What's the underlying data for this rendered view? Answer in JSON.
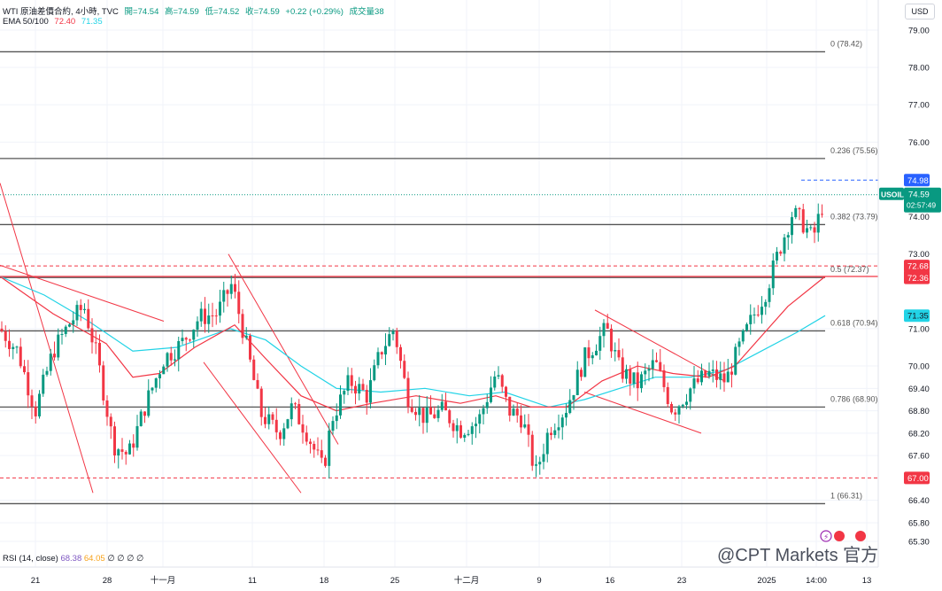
{
  "header": {
    "symbol": "WTI 原油差價合約, 4小時, TVC",
    "open": "開=74.54",
    "high": "高=74.59",
    "low": "低=74.52",
    "close": "收=74.59",
    "change": "+0.22 (+0.29%)",
    "volume": "成交量38"
  },
  "ema": {
    "label": "EMA 50/100",
    "v50": "72.40",
    "v100": "71.35"
  },
  "rsi": {
    "label": "RSI (14, close)",
    "v1": "68.38",
    "v2": "64.05",
    "rest": "∅ ∅ ∅ ∅"
  },
  "currency_button": "USD",
  "watermark": "@CPT Markets 官方",
  "colors": {
    "up": "#089981",
    "down": "#f23645",
    "ema50": "#f23645",
    "ema100": "#22d3e6",
    "fib_line": "#555555",
    "grid": "#f0f3fa",
    "accent_blue": "#2962ff"
  },
  "chart_data": {
    "type": "candlestick",
    "symbol": "USOIL",
    "timeframe": "4小時",
    "ylim": [
      65.3,
      79.0
    ],
    "y_ticks": [
      79.0,
      78.0,
      77.0,
      76.0,
      74.0,
      73.0,
      71.0,
      70.0,
      69.4,
      68.8,
      68.2,
      67.6,
      66.4,
      65.8,
      65.3
    ],
    "x_ticks": [
      "21",
      "28",
      "十一月",
      "11",
      "18",
      "25",
      "十二月",
      "9",
      "16",
      "23",
      "2025",
      "14:00",
      "13"
    ],
    "fib_levels": [
      {
        "ratio": "0",
        "value": 78.42
      },
      {
        "ratio": "0.236",
        "value": 75.56
      },
      {
        "ratio": "0.382",
        "value": 73.79
      },
      {
        "ratio": "0.5",
        "value": 72.37
      },
      {
        "ratio": "0.618",
        "value": 70.94
      },
      {
        "ratio": "0.786",
        "value": 68.9
      },
      {
        "ratio": "1",
        "value": 66.31
      }
    ],
    "price_labels": [
      {
        "text": "74.98",
        "value": 74.98,
        "color": "#2962ff"
      },
      {
        "text": "USOIL",
        "sub": "74.59",
        "time": "02:57:49",
        "value": 74.59,
        "color": "#089981"
      },
      {
        "text": "72.68",
        "value": 72.68,
        "color": "#f23645"
      },
      {
        "text": "72.40",
        "value": 72.4,
        "color": "#f23645"
      },
      {
        "text": "72.36",
        "value": 72.36,
        "color": "#f23645"
      },
      {
        "text": "71.35",
        "value": 71.35,
        "color": "#22d3e6"
      },
      {
        "text": "67.00",
        "value": 67.0,
        "color": "#f23645"
      }
    ],
    "horizontal_lines": [
      {
        "value": 72.4,
        "style": "solid",
        "color": "#f23645"
      },
      {
        "value": 72.68,
        "style": "dashed",
        "color": "#f23645"
      },
      {
        "value": 67.0,
        "style": "dashed",
        "color": "#f23645"
      },
      {
        "value": 74.98,
        "style": "dashed",
        "color": "#2962ff"
      },
      {
        "value": 74.59,
        "style": "dotted",
        "color": "#089981"
      }
    ],
    "keypoints": [
      [
        0,
        71.0
      ],
      [
        20,
        70.4
      ],
      [
        40,
        68.8
      ],
      [
        60,
        70.4
      ],
      [
        80,
        71.2
      ],
      [
        95,
        71.6
      ],
      [
        110,
        70.2
      ],
      [
        128,
        67.9
      ],
      [
        145,
        67.6
      ],
      [
        165,
        69.0
      ],
      [
        185,
        70.2
      ],
      [
        205,
        70.6
      ],
      [
        225,
        71.3
      ],
      [
        245,
        71.4
      ],
      [
        262,
        72.2
      ],
      [
        275,
        70.9
      ],
      [
        295,
        68.7
      ],
      [
        315,
        68.2
      ],
      [
        330,
        68.9
      ],
      [
        345,
        68.3
      ],
      [
        365,
        67.2
      ],
      [
        375,
        68.6
      ],
      [
        395,
        69.6
      ],
      [
        415,
        69.2
      ],
      [
        430,
        70.4
      ],
      [
        445,
        71.0
      ],
      [
        460,
        69.2
      ],
      [
        480,
        68.6
      ],
      [
        500,
        68.8
      ],
      [
        520,
        68.3
      ],
      [
        540,
        68.5
      ],
      [
        560,
        69.8
      ],
      [
        575,
        68.8
      ],
      [
        590,
        68.6
      ],
      [
        605,
        67.1
      ],
      [
        620,
        68.3
      ],
      [
        640,
        68.9
      ],
      [
        660,
        70.2
      ],
      [
        685,
        71.0
      ],
      [
        700,
        69.9
      ],
      [
        720,
        69.5
      ],
      [
        740,
        70.1
      ],
      [
        760,
        68.8
      ],
      [
        780,
        69.4
      ],
      [
        800,
        69.8
      ],
      [
        820,
        69.6
      ],
      [
        835,
        70.5
      ],
      [
        850,
        71.3
      ],
      [
        865,
        72.0
      ],
      [
        880,
        73.1
      ],
      [
        895,
        74.1
      ],
      [
        905,
        73.9
      ],
      [
        918,
        73.4
      ],
      [
        932,
        74.59
      ]
    ],
    "ema50_points": [
      [
        0,
        72.4
      ],
      [
        60,
        71.4
      ],
      [
        120,
        70.6
      ],
      [
        150,
        69.7
      ],
      [
        180,
        69.8
      ],
      [
        220,
        70.5
      ],
      [
        265,
        71.1
      ],
      [
        300,
        70.2
      ],
      [
        340,
        69.2
      ],
      [
        380,
        68.8
      ],
      [
        420,
        69.0
      ],
      [
        470,
        69.2
      ],
      [
        520,
        69.0
      ],
      [
        560,
        69.2
      ],
      [
        600,
        68.9
      ],
      [
        640,
        68.9
      ],
      [
        680,
        69.6
      ],
      [
        720,
        70.0
      ],
      [
        760,
        69.8
      ],
      [
        800,
        69.7
      ],
      [
        830,
        70.0
      ],
      [
        860,
        70.8
      ],
      [
        890,
        71.6
      ],
      [
        932,
        72.4
      ]
    ],
    "ema100_points": [
      [
        0,
        72.4
      ],
      [
        50,
        71.9
      ],
      [
        100,
        71.2
      ],
      [
        150,
        70.4
      ],
      [
        200,
        70.5
      ],
      [
        260,
        71.0
      ],
      [
        300,
        70.7
      ],
      [
        340,
        70.0
      ],
      [
        380,
        69.4
      ],
      [
        430,
        69.3
      ],
      [
        480,
        69.4
      ],
      [
        530,
        69.2
      ],
      [
        570,
        69.3
      ],
      [
        620,
        68.9
      ],
      [
        660,
        69.1
      ],
      [
        700,
        69.4
      ],
      [
        740,
        69.7
      ],
      [
        780,
        69.7
      ],
      [
        820,
        69.9
      ],
      [
        860,
        70.4
      ],
      [
        900,
        70.9
      ],
      [
        932,
        71.35
      ]
    ],
    "trend_lines": [
      {
        "from": [
          0,
          74.9
        ],
        "to": [
          105,
          66.6
        ]
      },
      {
        "from": [
          0,
          72.7
        ],
        "to": [
          185,
          71.2
        ]
      },
      {
        "from": [
          258,
          73.0
        ],
        "to": [
          382,
          67.9
        ]
      },
      {
        "from": [
          230,
          70.1
        ],
        "to": [
          340,
          66.6
        ]
      },
      {
        "from": [
          672,
          71.5
        ],
        "to": [
          818,
          69.6
        ]
      },
      {
        "from": [
          660,
          69.3
        ],
        "to": [
          792,
          68.2
        ]
      }
    ]
  }
}
